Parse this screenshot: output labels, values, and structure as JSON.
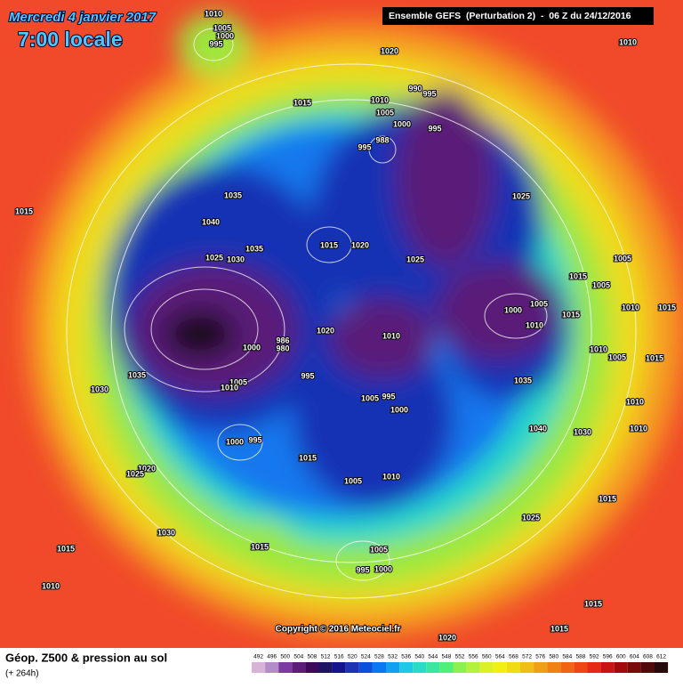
{
  "header": {
    "date": "Mercredi 4 janvier 2017",
    "time": "7:00 locale",
    "model": "Ensemble GEFS  (Perturbation 2)  -  06 Z du 24/12/2016"
  },
  "copyright": "Copyright © 2016 Meteociel.fr",
  "footer": {
    "caption": "Géop. Z500 & pression au sol",
    "lead": "(+ 264h)"
  },
  "isobar_labels": [
    "1010",
    "1005",
    "1000",
    "995",
    "1020",
    "1010",
    "990",
    "995",
    "1010",
    "1005",
    "1000",
    "995",
    "988",
    "995",
    "1015",
    "1035",
    "1040",
    "1025",
    "1015",
    "1015",
    "1020",
    "1025",
    "1035",
    "1025",
    "1030",
    "1005",
    "1015",
    "1005",
    "1000",
    "1005",
    "1015",
    "1010",
    "1015",
    "1010",
    "1010",
    "1020",
    "1000",
    "986",
    "980",
    "1010",
    "1005",
    "1015",
    "1035",
    "1005",
    "1010",
    "995",
    "1035",
    "995",
    "1005",
    "1000",
    "1010",
    "1030",
    "1040",
    "1030",
    "1010",
    "1000",
    "995",
    "1015",
    "1020",
    "1025",
    "1005",
    "1010",
    "1015",
    "1025",
    "1030",
    "1015",
    "1015",
    "1005",
    "995",
    "1000",
    "1010",
    "1015",
    "1015",
    "1020"
  ],
  "colorbar": {
    "labels": [
      492,
      496,
      500,
      504,
      508,
      512,
      516,
      520,
      524,
      528,
      532,
      536,
      540,
      544,
      548,
      552,
      556,
      560,
      564,
      568,
      572,
      576,
      580,
      584,
      588,
      592,
      596,
      600,
      604,
      608,
      612
    ],
    "colors": [
      "#d7b4d7",
      "#b48cc8",
      "#7a3ca0",
      "#5a1e78",
      "#3c0a5a",
      "#1e1464",
      "#14148c",
      "#1e32b4",
      "#0a50dc",
      "#0a78f0",
      "#14a0f0",
      "#1ec8e6",
      "#28dcc8",
      "#3ce6a0",
      "#50f078",
      "#8cf050",
      "#b4f03c",
      "#dcf028",
      "#f0f014",
      "#f0dc14",
      "#f0be14",
      "#f0a014",
      "#f08214",
      "#f06414",
      "#f04614",
      "#e62814",
      "#c81414",
      "#a00a0a",
      "#780a0a",
      "#500a0a",
      "#280a0a"
    ]
  }
}
